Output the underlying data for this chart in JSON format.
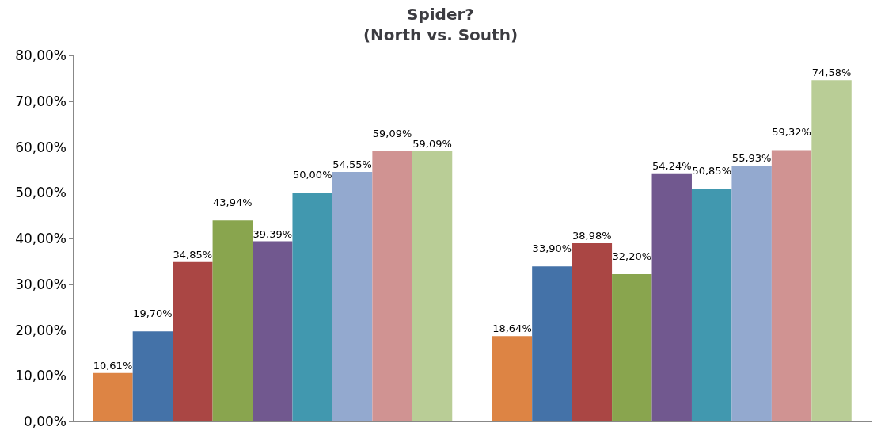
{
  "chart_data": {
    "type": "bar",
    "title": "Spider?\n(North vs. South)",
    "categories": [
      null,
      null
    ],
    "series": [
      {
        "color": "#dd8444",
        "values": [
          10.61,
          18.64
        ],
        "value_labels": [
          "10,61%",
          "18,64%"
        ]
      },
      {
        "color": "#4472a8",
        "values": [
          19.7,
          33.9
        ],
        "value_labels": [
          "19,70%",
          "33,90%"
        ]
      },
      {
        "color": "#aa4644",
        "values": [
          34.85,
          38.98
        ],
        "value_labels": [
          "34,85%",
          "38,98%"
        ]
      },
      {
        "color": "#89a54e",
        "values": [
          43.94,
          32.2
        ],
        "value_labels": [
          "43,94%",
          "32,20%"
        ]
      },
      {
        "color": "#71588f",
        "values": [
          39.39,
          54.24
        ],
        "value_labels": [
          "39,39%",
          "54,24%"
        ]
      },
      {
        "color": "#4198af",
        "values": [
          50.0,
          50.85
        ],
        "value_labels": [
          "50,00%",
          "50,85%"
        ]
      },
      {
        "color": "#93a9cf",
        "values": [
          54.55,
          55.93
        ],
        "value_labels": [
          "54,55%",
          "55,93%"
        ]
      },
      {
        "color": "#d09392",
        "values": [
          59.09,
          59.32
        ],
        "value_labels": [
          "59,09%",
          "59,32%"
        ]
      },
      {
        "color": "#b9cd96",
        "values": [
          59.09,
          74.58
        ],
        "value_labels": [
          "59,09%",
          "74,58%"
        ]
      }
    ],
    "ylim": [
      0,
      80
    ],
    "yticks": [
      {
        "value": 0,
        "label": "0,00%"
      },
      {
        "value": 10,
        "label": "10,00%"
      },
      {
        "value": 20,
        "label": "20,00%"
      },
      {
        "value": 30,
        "label": "30,00%"
      },
      {
        "value": 40,
        "label": "40,00%"
      },
      {
        "value": 50,
        "label": "50,00%"
      },
      {
        "value": 60,
        "label": "60,00%"
      },
      {
        "value": 70,
        "label": "70,00%"
      },
      {
        "value": 80,
        "label": "80,00%"
      }
    ],
    "grid": false
  }
}
